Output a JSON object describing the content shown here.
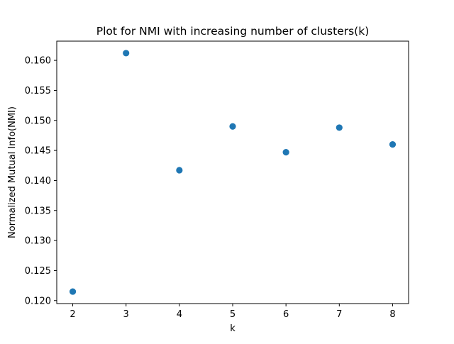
{
  "chart_data": {
    "type": "scatter",
    "title": "Plot for NMI with increasing number of clusters(k)",
    "xlabel": "k",
    "ylabel": "Normalized Mutual Info(NMI)",
    "x": [
      2,
      3,
      4,
      5,
      6,
      7,
      8
    ],
    "y": [
      0.1215,
      0.1612,
      0.1417,
      0.149,
      0.1447,
      0.1488,
      0.146
    ],
    "xlim": [
      1.7,
      8.3
    ],
    "ylim": [
      0.1195,
      0.1632
    ],
    "xticks": [
      2,
      3,
      4,
      5,
      6,
      7,
      8
    ],
    "xtick_labels": [
      "2",
      "3",
      "4",
      "5",
      "6",
      "7",
      "8"
    ],
    "yticks": [
      0.12,
      0.125,
      0.13,
      0.135,
      0.14,
      0.145,
      0.15,
      0.155,
      0.16
    ],
    "ytick_labels": [
      "0.120",
      "0.125",
      "0.130",
      "0.135",
      "0.140",
      "0.145",
      "0.150",
      "0.155",
      "0.160"
    ],
    "grid": false,
    "legend": "none",
    "marker_color": "#1f77b4"
  }
}
